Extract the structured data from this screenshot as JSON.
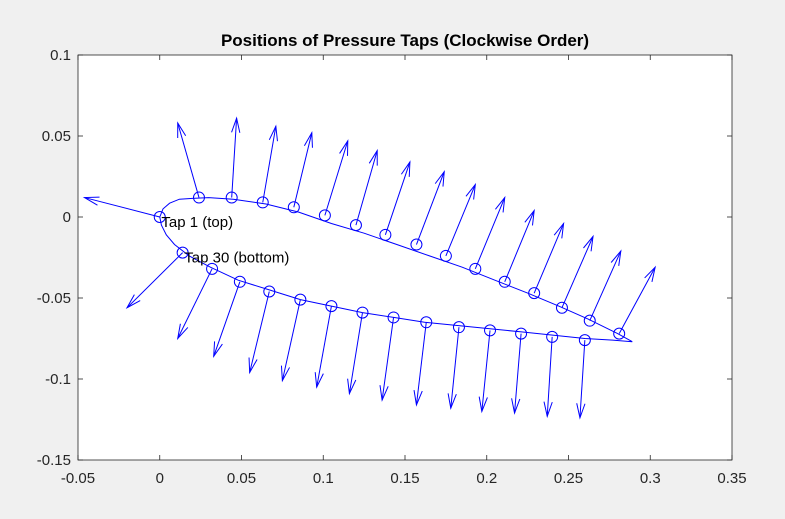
{
  "colors": {
    "figure_background": "#f0f0f0",
    "axes_background": "#ffffff",
    "axis_color": "#262626",
    "series_color": "#0000ff"
  },
  "chart_data": {
    "type": "scatter",
    "title": "Positions of Pressure Taps (Clockwise Order)",
    "xlabel": "",
    "ylabel": "",
    "xlim": [
      -0.05,
      0.35
    ],
    "ylim": [
      -0.15,
      0.1
    ],
    "xticks": [
      -0.05,
      0,
      0.05,
      0.1,
      0.15,
      0.2,
      0.25,
      0.3,
      0.35
    ],
    "xtick_labels": [
      "-0.05",
      "0",
      "0.05",
      "0.1",
      "0.15",
      "0.2",
      "0.25",
      "0.3",
      "0.35"
    ],
    "yticks": [
      0.1,
      0.05,
      0,
      -0.05,
      -0.1,
      -0.15
    ],
    "ytick_labels": [
      "0.1",
      "0.05",
      "0",
      "-0.05",
      "-0.1",
      "-0.15"
    ],
    "grid": false,
    "legend": "none",
    "profile": {
      "x": [
        0.289,
        0.28,
        0.262,
        0.244,
        0.225,
        0.205,
        0.185,
        0.165,
        0.145,
        0.125,
        0.105,
        0.085,
        0.065,
        0.045,
        0.03,
        0.02,
        0.012,
        0.006,
        0.002,
        0.0,
        0.001,
        0.004,
        0.009,
        0.018,
        0.031,
        0.048,
        0.067,
        0.086,
        0.105,
        0.124,
        0.143,
        0.162,
        0.182,
        0.202,
        0.222,
        0.241,
        0.26,
        0.277,
        0.289
      ],
      "y": [
        -0.077,
        -0.072,
        -0.063,
        -0.055,
        -0.047,
        -0.039,
        -0.031,
        -0.024,
        -0.017,
        -0.01,
        -0.004,
        0.003,
        0.008,
        0.011,
        0.012,
        0.0115,
        0.011,
        0.0085,
        0.005,
        0.0,
        -0.005,
        -0.011,
        -0.017,
        -0.024,
        -0.031,
        -0.039,
        -0.045,
        -0.051,
        -0.055,
        -0.059,
        -0.062,
        -0.065,
        -0.067,
        -0.069,
        -0.071,
        -0.073,
        -0.075,
        -0.076,
        -0.077
      ]
    },
    "taps": {
      "x": [
        0.0,
        0.024,
        0.044,
        0.063,
        0.082,
        0.101,
        0.12,
        0.138,
        0.157,
        0.175,
        0.193,
        0.211,
        0.229,
        0.246,
        0.263,
        0.281,
        0.26,
        0.24,
        0.221,
        0.202,
        0.183,
        0.163,
        0.143,
        0.124,
        0.105,
        0.086,
        0.067,
        0.049,
        0.032,
        0.014
      ],
      "y": [
        0.0,
        0.012,
        0.012,
        0.009,
        0.006,
        0.001,
        -0.005,
        -0.011,
        -0.017,
        -0.024,
        -0.032,
        -0.04,
        -0.047,
        -0.056,
        -0.064,
        -0.072,
        -0.076,
        -0.074,
        -0.072,
        -0.07,
        -0.068,
        -0.065,
        -0.062,
        -0.059,
        -0.055,
        -0.051,
        -0.046,
        -0.04,
        -0.032,
        -0.022
      ]
    },
    "vectors": [
      {
        "from": [
          0.0,
          0.0
        ],
        "to": [
          -0.046,
          0.012
        ]
      },
      {
        "from": [
          0.024,
          0.012
        ],
        "to": [
          0.011,
          0.058
        ]
      },
      {
        "from": [
          0.044,
          0.012
        ],
        "to": [
          0.047,
          0.061
        ]
      },
      {
        "from": [
          0.063,
          0.009
        ],
        "to": [
          0.071,
          0.056
        ]
      },
      {
        "from": [
          0.082,
          0.006
        ],
        "to": [
          0.093,
          0.052
        ]
      },
      {
        "from": [
          0.101,
          0.001
        ],
        "to": [
          0.115,
          0.047
        ]
      },
      {
        "from": [
          0.12,
          -0.005
        ],
        "to": [
          0.133,
          0.041
        ]
      },
      {
        "from": [
          0.138,
          -0.011
        ],
        "to": [
          0.153,
          0.034
        ]
      },
      {
        "from": [
          0.157,
          -0.017
        ],
        "to": [
          0.174,
          0.028
        ]
      },
      {
        "from": [
          0.175,
          -0.024
        ],
        "to": [
          0.193,
          0.02
        ]
      },
      {
        "from": [
          0.193,
          -0.032
        ],
        "to": [
          0.211,
          0.012
        ]
      },
      {
        "from": [
          0.211,
          -0.04
        ],
        "to": [
          0.229,
          0.004
        ]
      },
      {
        "from": [
          0.229,
          -0.047
        ],
        "to": [
          0.247,
          -0.004
        ]
      },
      {
        "from": [
          0.246,
          -0.056
        ],
        "to": [
          0.265,
          -0.012
        ]
      },
      {
        "from": [
          0.263,
          -0.064
        ],
        "to": [
          0.282,
          -0.021
        ]
      },
      {
        "from": [
          0.281,
          -0.072
        ],
        "to": [
          0.303,
          -0.031
        ]
      },
      {
        "from": [
          0.26,
          -0.076
        ],
        "to": [
          0.257,
          -0.124
        ]
      },
      {
        "from": [
          0.24,
          -0.074
        ],
        "to": [
          0.237,
          -0.123
        ]
      },
      {
        "from": [
          0.221,
          -0.072
        ],
        "to": [
          0.217,
          -0.121
        ]
      },
      {
        "from": [
          0.202,
          -0.07
        ],
        "to": [
          0.197,
          -0.12
        ]
      },
      {
        "from": [
          0.183,
          -0.068
        ],
        "to": [
          0.178,
          -0.118
        ]
      },
      {
        "from": [
          0.163,
          -0.065
        ],
        "to": [
          0.157,
          -0.116
        ]
      },
      {
        "from": [
          0.143,
          -0.062
        ],
        "to": [
          0.136,
          -0.113
        ]
      },
      {
        "from": [
          0.124,
          -0.059
        ],
        "to": [
          0.116,
          -0.109
        ]
      },
      {
        "from": [
          0.105,
          -0.055
        ],
        "to": [
          0.096,
          -0.105
        ]
      },
      {
        "from": [
          0.086,
          -0.051
        ],
        "to": [
          0.075,
          -0.101
        ]
      },
      {
        "from": [
          0.067,
          -0.046
        ],
        "to": [
          0.055,
          -0.096
        ]
      },
      {
        "from": [
          0.049,
          -0.04
        ],
        "to": [
          0.033,
          -0.086
        ]
      },
      {
        "from": [
          0.032,
          -0.032
        ],
        "to": [
          0.011,
          -0.075
        ]
      },
      {
        "from": [
          0.014,
          -0.022
        ],
        "to": [
          -0.02,
          -0.056
        ]
      }
    ],
    "annotations": [
      {
        "text": "Tap 1 (top)",
        "x": 0.001,
        "y": -0.003
      },
      {
        "text": "Tap 30 (bottom)",
        "x": 0.015,
        "y": -0.025
      }
    ]
  }
}
